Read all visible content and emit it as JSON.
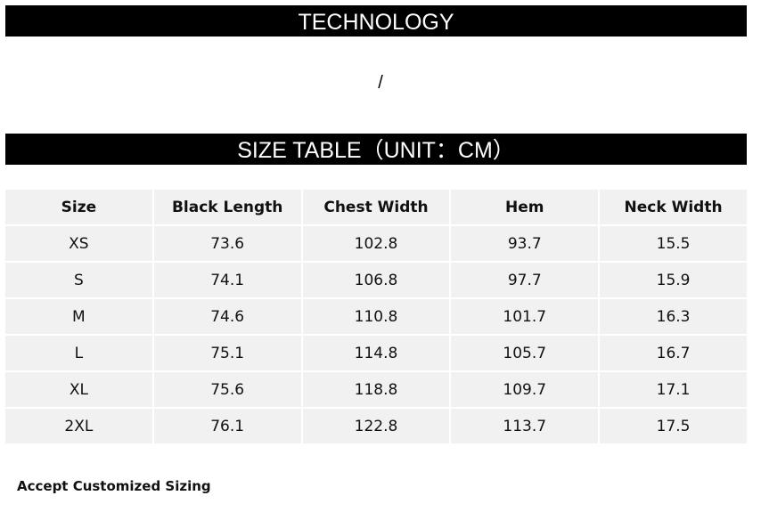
{
  "banner_1": {
    "title": "TECHNOLOGY"
  },
  "separator": "/",
  "banner_2": {
    "title": "SIZE TABLE（UNIT：CM）"
  },
  "table": {
    "header": [
      "Size",
      "Black Length",
      "Chest Width",
      "Hem",
      "Neck Width"
    ],
    "rows": [
      [
        "XS",
        "73.6",
        "102.8",
        "93.7",
        "15.5"
      ],
      [
        "S",
        "74.1",
        "106.8",
        "97.7",
        "15.9"
      ],
      [
        "M",
        "74.6",
        "110.8",
        "101.7",
        "16.3"
      ],
      [
        "L",
        "75.1",
        "114.8",
        "105.7",
        "16.7"
      ],
      [
        "XL",
        "75.6",
        "118.8",
        "109.7",
        "17.1"
      ],
      [
        "2XL",
        "76.1",
        "122.8",
        "113.7",
        "17.5"
      ]
    ]
  },
  "footer": {
    "note": "Accept Customized Sizing"
  }
}
